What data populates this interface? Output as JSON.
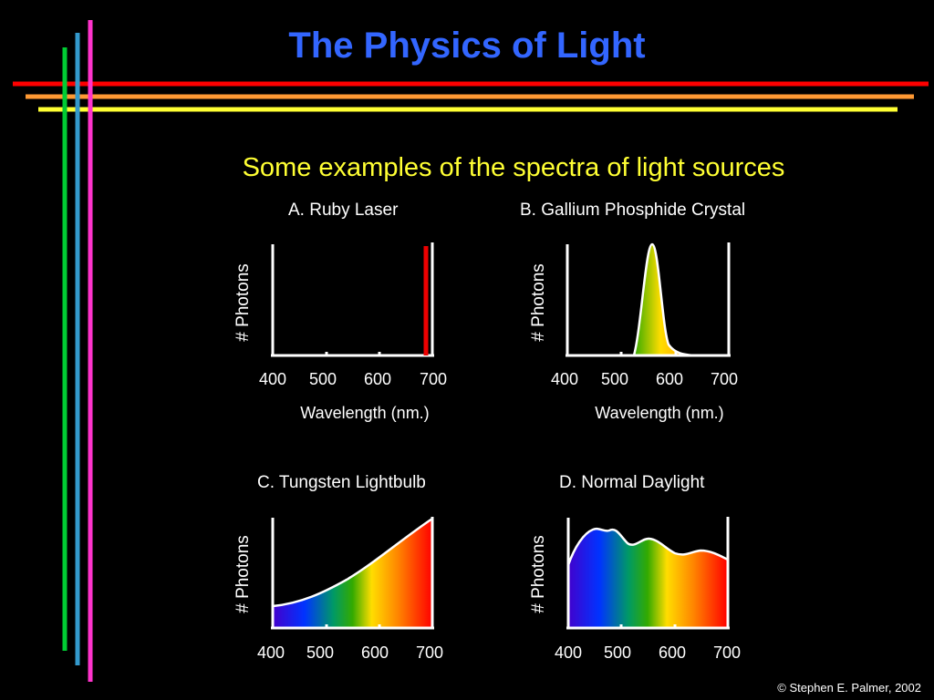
{
  "title": "The Physics of Light",
  "subtitle": "Some examples of the spectra of light sources",
  "credit": "© Stephen E. Palmer, 2002",
  "panels": [
    {
      "title": "A.  Ruby Laser",
      "ylabel": "# Photons",
      "xlabel": "Wavelength (nm.)",
      "ticks": [
        "400",
        "500",
        "600",
        "700"
      ]
    },
    {
      "title": "B. Gallium Phosphide Crystal",
      "ylabel": "# Photons",
      "xlabel": "Wavelength (nm.)",
      "ticks": [
        "400",
        "500",
        "600",
        "700"
      ]
    },
    {
      "title": "C.  Tungsten Lightbulb",
      "ylabel": "# Photons",
      "ticks": [
        "400",
        "500",
        "600",
        "700"
      ]
    },
    {
      "title": "D.  Normal Daylight",
      "ylabel": "# Photons",
      "ticks": [
        "400",
        "500",
        "600",
        "700"
      ]
    }
  ],
  "decor": {
    "line_colors": [
      "#ff0000",
      "#ff9933",
      "#ffff33",
      "#00cc33",
      "#3399cc",
      "#ff33cc"
    ]
  }
}
